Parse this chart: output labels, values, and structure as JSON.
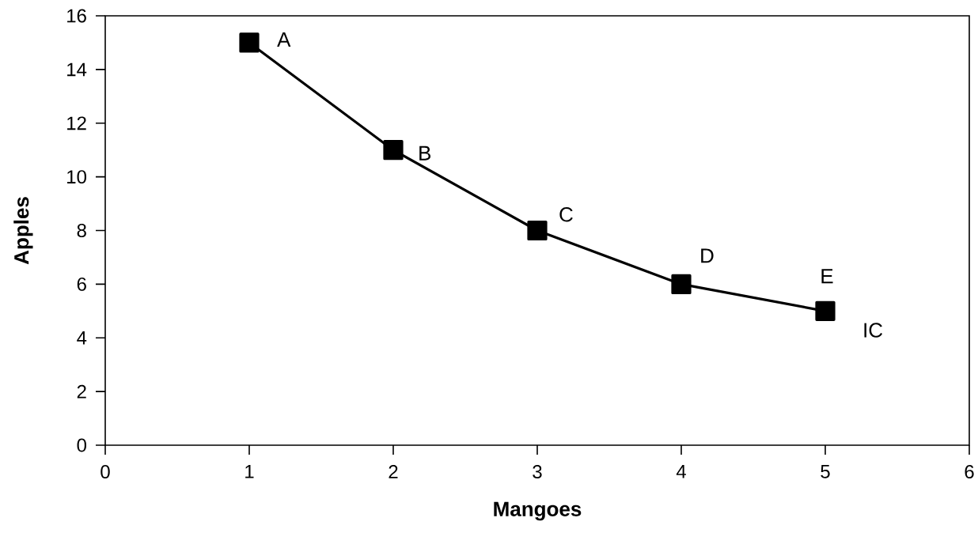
{
  "chart_data": {
    "type": "line",
    "xlabel": "Mangoes",
    "ylabel": "Apples",
    "x": [
      1,
      2,
      3,
      4,
      5
    ],
    "values": [
      15,
      11,
      8,
      6,
      5
    ],
    "color": "#000000",
    "marker": "square",
    "line_style": "solid",
    "grid": false,
    "xlim": [
      0,
      6
    ],
    "ylim": [
      0,
      16
    ],
    "xticks": [
      0,
      1,
      2,
      3,
      4,
      5,
      6
    ],
    "yticks": [
      0,
      2,
      4,
      6,
      8,
      10,
      12,
      14,
      16
    ],
    "annotations": [
      {
        "text": "A",
        "x": 1,
        "y": 15
      },
      {
        "text": "B",
        "x": 2,
        "y": 11
      },
      {
        "text": "C",
        "x": 3,
        "y": 8
      },
      {
        "text": "D",
        "x": 4,
        "y": 6
      },
      {
        "text": "E",
        "x": 5,
        "y": 5
      },
      {
        "text": "IC",
        "x": 5,
        "y": 5
      }
    ]
  }
}
